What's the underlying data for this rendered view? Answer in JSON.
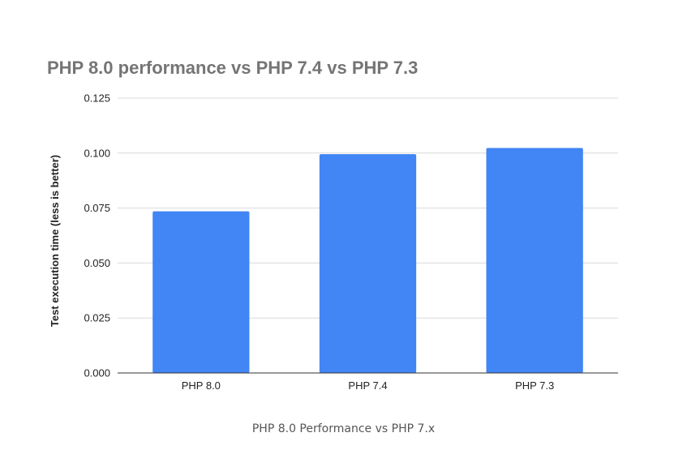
{
  "chart_data": {
    "type": "bar",
    "title": "PHP 8.0 performance vs PHP 7.4 vs PHP 7.3",
    "xlabel": "",
    "ylabel": "Test execution time (less is better)",
    "categories": [
      "PHP 8.0",
      "PHP 7.4",
      "PHP 7.3"
    ],
    "values": [
      0.0735,
      0.0995,
      0.1023
    ],
    "ylim": [
      0,
      0.125
    ],
    "yticks": [
      "0.000",
      "0.025",
      "0.050",
      "0.075",
      "0.100",
      "0.125"
    ],
    "grid": true,
    "legend": "none",
    "bar_color": "#4285F4"
  },
  "caption": "PHP 8.0 Performance vs PHP 7.x"
}
